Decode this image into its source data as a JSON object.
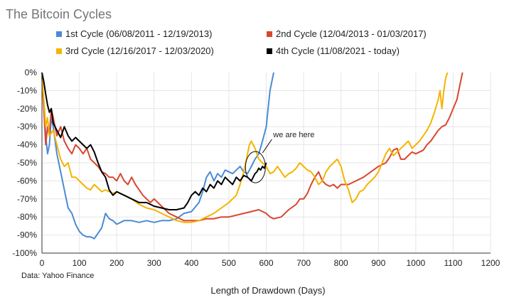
{
  "chart_data": {
    "type": "line",
    "title": "The Bitcoin Cycles",
    "xlabel": "Length of Drawdown (Days)",
    "ylabel": "",
    "source": "Data: Yahoo Finance",
    "xlim": [
      0,
      1200
    ],
    "ylim": [
      -100,
      0
    ],
    "x_ticks": [
      "0",
      "100",
      "200",
      "300",
      "400",
      "500",
      "600",
      "700",
      "800",
      "900",
      "1000",
      "1100",
      "1200"
    ],
    "y_ticks": [
      "0%",
      "-10%",
      "-20%",
      "-30%",
      "-40%",
      "-50%",
      "-60%",
      "-70%",
      "-80%",
      "-90%",
      "-100%"
    ],
    "grid": true,
    "legend_position": "top",
    "annotation": {
      "text": "we are here",
      "x": 592,
      "y": -52
    },
    "series": [
      {
        "name": "1st Cycle (06/08/2011 - 12/19/2013)",
        "color": "#4a8bd6",
        "points": [
          [
            0,
            0
          ],
          [
            5,
            -18
          ],
          [
            10,
            -35
          ],
          [
            15,
            -45
          ],
          [
            20,
            -40
          ],
          [
            25,
            -25
          ],
          [
            30,
            -30
          ],
          [
            40,
            -45
          ],
          [
            50,
            -55
          ],
          [
            60,
            -65
          ],
          [
            70,
            -75
          ],
          [
            80,
            -78
          ],
          [
            90,
            -84
          ],
          [
            100,
            -88
          ],
          [
            110,
            -90
          ],
          [
            120,
            -91
          ],
          [
            130,
            -91
          ],
          [
            140,
            -92
          ],
          [
            150,
            -89
          ],
          [
            160,
            -86
          ],
          [
            170,
            -78
          ],
          [
            180,
            -81
          ],
          [
            190,
            -82
          ],
          [
            200,
            -84
          ],
          [
            220,
            -82
          ],
          [
            240,
            -82
          ],
          [
            260,
            -83
          ],
          [
            280,
            -82
          ],
          [
            300,
            -83
          ],
          [
            320,
            -82
          ],
          [
            340,
            -82
          ],
          [
            360,
            -81
          ],
          [
            380,
            -78
          ],
          [
            400,
            -77
          ],
          [
            420,
            -72
          ],
          [
            430,
            -66
          ],
          [
            440,
            -58
          ],
          [
            450,
            -55
          ],
          [
            460,
            -60
          ],
          [
            470,
            -56
          ],
          [
            480,
            -58
          ],
          [
            490,
            -54
          ],
          [
            500,
            -55
          ],
          [
            510,
            -56
          ],
          [
            520,
            -54
          ],
          [
            530,
            -52
          ],
          [
            540,
            -55
          ],
          [
            550,
            -56
          ],
          [
            560,
            -52
          ],
          [
            570,
            -48
          ],
          [
            580,
            -45
          ],
          [
            590,
            -38
          ],
          [
            600,
            -30
          ],
          [
            605,
            -20
          ],
          [
            610,
            -10
          ],
          [
            615,
            -5
          ],
          [
            620,
            0
          ]
        ]
      },
      {
        "name": "2nd Cycle (12/04/2013 - 01/03/2017)",
        "color": "#d9462f",
        "points": [
          [
            0,
            -2
          ],
          [
            5,
            -20
          ],
          [
            10,
            -40
          ],
          [
            15,
            -30
          ],
          [
            20,
            -35
          ],
          [
            25,
            -20
          ],
          [
            30,
            -25
          ],
          [
            40,
            -35
          ],
          [
            50,
            -30
          ],
          [
            60,
            -38
          ],
          [
            70,
            -42
          ],
          [
            80,
            -45
          ],
          [
            90,
            -40
          ],
          [
            100,
            -42
          ],
          [
            110,
            -45
          ],
          [
            120,
            -42
          ],
          [
            130,
            -48
          ],
          [
            140,
            -50
          ],
          [
            150,
            -52
          ],
          [
            160,
            -55
          ],
          [
            170,
            -56
          ],
          [
            180,
            -58
          ],
          [
            190,
            -58
          ],
          [
            200,
            -60
          ],
          [
            210,
            -56
          ],
          [
            220,
            -60
          ],
          [
            230,
            -62
          ],
          [
            240,
            -58
          ],
          [
            250,
            -62
          ],
          [
            260,
            -65
          ],
          [
            270,
            -68
          ],
          [
            280,
            -70
          ],
          [
            290,
            -72
          ],
          [
            300,
            -70
          ],
          [
            310,
            -72
          ],
          [
            320,
            -74
          ],
          [
            340,
            -78
          ],
          [
            360,
            -80
          ],
          [
            380,
            -82
          ],
          [
            400,
            -82
          ],
          [
            420,
            -82
          ],
          [
            440,
            -81
          ],
          [
            460,
            -81
          ],
          [
            480,
            -80
          ],
          [
            500,
            -80
          ],
          [
            520,
            -79
          ],
          [
            540,
            -78
          ],
          [
            560,
            -77
          ],
          [
            580,
            -76
          ],
          [
            600,
            -78
          ],
          [
            610,
            -80
          ],
          [
            620,
            -81
          ],
          [
            640,
            -80
          ],
          [
            660,
            -76
          ],
          [
            680,
            -73
          ],
          [
            690,
            -70
          ],
          [
            700,
            -70
          ],
          [
            710,
            -67
          ],
          [
            720,
            -62
          ],
          [
            730,
            -58
          ],
          [
            740,
            -55
          ],
          [
            750,
            -60
          ],
          [
            760,
            -62
          ],
          [
            770,
            -63
          ],
          [
            780,
            -62
          ],
          [
            790,
            -64
          ],
          [
            800,
            -62
          ],
          [
            820,
            -62
          ],
          [
            840,
            -60
          ],
          [
            860,
            -58
          ],
          [
            880,
            -55
          ],
          [
            900,
            -52
          ],
          [
            920,
            -50
          ],
          [
            930,
            -47
          ],
          [
            940,
            -43
          ],
          [
            950,
            -42
          ],
          [
            960,
            -48
          ],
          [
            970,
            -48
          ],
          [
            980,
            -46
          ],
          [
            990,
            -44
          ],
          [
            1000,
            -45
          ],
          [
            1010,
            -44
          ],
          [
            1020,
            -43
          ],
          [
            1030,
            -40
          ],
          [
            1040,
            -38
          ],
          [
            1050,
            -35
          ],
          [
            1060,
            -32
          ],
          [
            1070,
            -30
          ],
          [
            1080,
            -29
          ],
          [
            1090,
            -25
          ],
          [
            1100,
            -20
          ],
          [
            1110,
            -15
          ],
          [
            1115,
            -10
          ],
          [
            1120,
            -5
          ],
          [
            1125,
            0
          ]
        ]
      },
      {
        "name": "3rd Cycle (12/16/2017 - 12/03/2020)",
        "color": "#f4b400",
        "points": [
          [
            0,
            -2
          ],
          [
            5,
            -15
          ],
          [
            10,
            -30
          ],
          [
            15,
            -25
          ],
          [
            20,
            -35
          ],
          [
            30,
            -32
          ],
          [
            40,
            -40
          ],
          [
            50,
            -48
          ],
          [
            60,
            -52
          ],
          [
            70,
            -50
          ],
          [
            80,
            -58
          ],
          [
            90,
            -58
          ],
          [
            100,
            -60
          ],
          [
            110,
            -62
          ],
          [
            120,
            -64
          ],
          [
            130,
            -65
          ],
          [
            140,
            -62
          ],
          [
            150,
            -64
          ],
          [
            160,
            -66
          ],
          [
            170,
            -65
          ],
          [
            180,
            -66
          ],
          [
            190,
            -67
          ],
          [
            200,
            -66
          ],
          [
            220,
            -68
          ],
          [
            240,
            -70
          ],
          [
            260,
            -73
          ],
          [
            280,
            -75
          ],
          [
            300,
            -76
          ],
          [
            320,
            -78
          ],
          [
            340,
            -80
          ],
          [
            360,
            -82
          ],
          [
            380,
            -83
          ],
          [
            400,
            -83
          ],
          [
            420,
            -82
          ],
          [
            440,
            -80
          ],
          [
            460,
            -78
          ],
          [
            480,
            -75
          ],
          [
            500,
            -72
          ],
          [
            520,
            -68
          ],
          [
            530,
            -62
          ],
          [
            540,
            -55
          ],
          [
            550,
            -45
          ],
          [
            555,
            -40
          ],
          [
            560,
            -38
          ],
          [
            570,
            -42
          ],
          [
            580,
            -48
          ],
          [
            590,
            -50
          ],
          [
            600,
            -52
          ],
          [
            610,
            -56
          ],
          [
            620,
            -55
          ],
          [
            630,
            -52
          ],
          [
            640,
            -55
          ],
          [
            650,
            -58
          ],
          [
            660,
            -56
          ],
          [
            670,
            -55
          ],
          [
            680,
            -53
          ],
          [
            690,
            -50
          ],
          [
            700,
            -52
          ],
          [
            710,
            -54
          ],
          [
            720,
            -55
          ],
          [
            730,
            -58
          ],
          [
            740,
            -62
          ],
          [
            750,
            -60
          ],
          [
            760,
            -55
          ],
          [
            770,
            -52
          ],
          [
            780,
            -50
          ],
          [
            790,
            -48
          ],
          [
            800,
            -52
          ],
          [
            810,
            -60
          ],
          [
            820,
            -65
          ],
          [
            830,
            -72
          ],
          [
            840,
            -70
          ],
          [
            850,
            -66
          ],
          [
            860,
            -65
          ],
          [
            870,
            -62
          ],
          [
            880,
            -60
          ],
          [
            890,
            -58
          ],
          [
            900,
            -55
          ],
          [
            910,
            -50
          ],
          [
            920,
            -45
          ],
          [
            930,
            -42
          ],
          [
            940,
            -46
          ],
          [
            950,
            -44
          ],
          [
            960,
            -42
          ],
          [
            970,
            -40
          ],
          [
            980,
            -38
          ],
          [
            990,
            -42
          ],
          [
            1000,
            -40
          ],
          [
            1010,
            -38
          ],
          [
            1020,
            -35
          ],
          [
            1030,
            -32
          ],
          [
            1040,
            -28
          ],
          [
            1050,
            -22
          ],
          [
            1060,
            -15
          ],
          [
            1065,
            -10
          ],
          [
            1070,
            -20
          ],
          [
            1075,
            -10
          ],
          [
            1080,
            -3
          ],
          [
            1085,
            0
          ]
        ]
      },
      {
        "name": "4th Cycle (11/08/2021 - today)",
        "color": "#000000",
        "points": [
          [
            0,
            0
          ],
          [
            5,
            -5
          ],
          [
            10,
            -12
          ],
          [
            15,
            -18
          ],
          [
            20,
            -22
          ],
          [
            25,
            -20
          ],
          [
            30,
            -28
          ],
          [
            40,
            -32
          ],
          [
            50,
            -36
          ],
          [
            60,
            -30
          ],
          [
            70,
            -35
          ],
          [
            80,
            -38
          ],
          [
            90,
            -36
          ],
          [
            100,
            -38
          ],
          [
            110,
            -40
          ],
          [
            120,
            -42
          ],
          [
            130,
            -40
          ],
          [
            140,
            -44
          ],
          [
            150,
            -50
          ],
          [
            160,
            -55
          ],
          [
            170,
            -58
          ],
          [
            180,
            -65
          ],
          [
            190,
            -68
          ],
          [
            200,
            -66
          ],
          [
            210,
            -67
          ],
          [
            220,
            -68
          ],
          [
            240,
            -70
          ],
          [
            260,
            -72
          ],
          [
            280,
            -72
          ],
          [
            300,
            -74
          ],
          [
            320,
            -75
          ],
          [
            340,
            -76
          ],
          [
            360,
            -76
          ],
          [
            380,
            -75
          ],
          [
            390,
            -72
          ],
          [
            400,
            -68
          ],
          [
            410,
            -66
          ],
          [
            420,
            -68
          ],
          [
            430,
            -64
          ],
          [
            440,
            -66
          ],
          [
            450,
            -62
          ],
          [
            460,
            -64
          ],
          [
            470,
            -60
          ],
          [
            480,
            -62
          ],
          [
            490,
            -58
          ],
          [
            500,
            -60
          ],
          [
            510,
            -62
          ],
          [
            520,
            -58
          ],
          [
            530,
            -60
          ],
          [
            540,
            -57
          ],
          [
            550,
            -58
          ],
          [
            560,
            -60
          ],
          [
            565,
            -58
          ],
          [
            570,
            -56
          ],
          [
            575,
            -55
          ],
          [
            580,
            -53
          ],
          [
            585,
            -54
          ],
          [
            590,
            -52
          ],
          [
            595,
            -53
          ],
          [
            600,
            -50
          ]
        ]
      }
    ]
  }
}
